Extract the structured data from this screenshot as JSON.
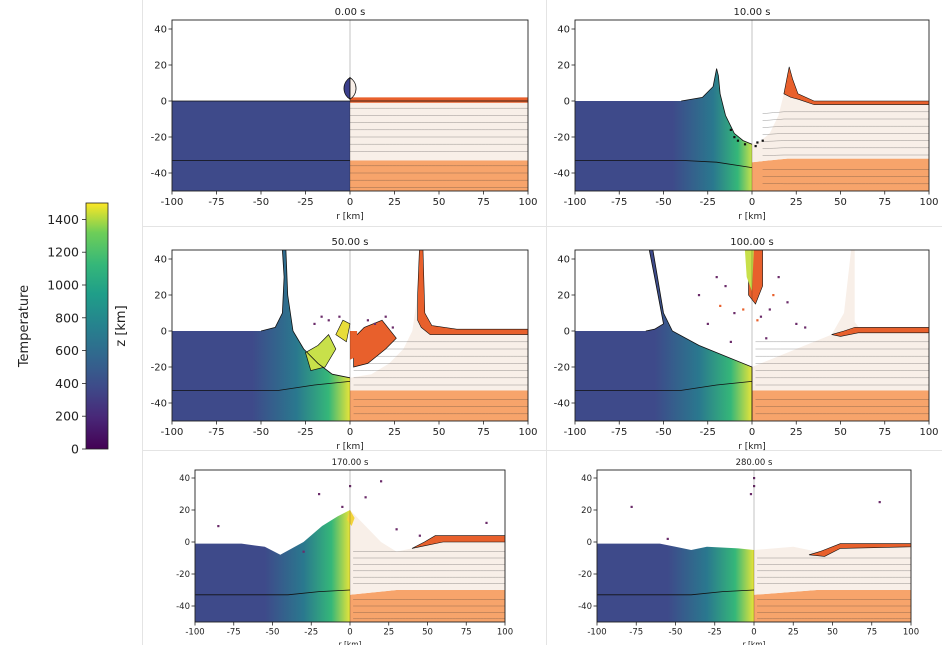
{
  "chart_data": [
    {
      "type": "heatmap",
      "title": "0.00 s",
      "xlabel": "r [km]",
      "xlim": [
        -100,
        100
      ],
      "ylim": [
        -50,
        45
      ],
      "xticks": [
        -100,
        -75,
        -50,
        -25,
        0,
        25,
        50,
        75,
        100
      ],
      "yticks": [
        40,
        20,
        0,
        -20,
        -40
      ]
    },
    {
      "type": "heatmap",
      "title": "10.00 s",
      "xlabel": "r [km]",
      "xlim": [
        -100,
        100
      ],
      "ylim": [
        -50,
        45
      ],
      "xticks": [
        -100,
        -75,
        -50,
        -25,
        0,
        25,
        50,
        75,
        100
      ],
      "yticks": [
        40,
        20,
        0,
        -20,
        -40
      ]
    },
    {
      "type": "heatmap",
      "title": "50.00 s",
      "xlabel": "r [km]",
      "xlim": [
        -100,
        100
      ],
      "ylim": [
        -50,
        45
      ],
      "xticks": [
        -100,
        -75,
        -50,
        -25,
        0,
        25,
        50,
        75,
        100
      ],
      "yticks": [
        40,
        20,
        0,
        -20,
        -40
      ]
    },
    {
      "type": "heatmap",
      "title": "100.00 s",
      "xlabel": "r [km]",
      "xlim": [
        -100,
        100
      ],
      "ylim": [
        -50,
        45
      ],
      "xticks": [
        -100,
        -75,
        -50,
        -25,
        0,
        25,
        50,
        75,
        100
      ],
      "yticks": [
        40,
        20,
        0,
        -20,
        -40
      ]
    },
    {
      "type": "heatmap",
      "title": "170.00 s",
      "xlabel": "r [km]",
      "xlim": [
        -100,
        100
      ],
      "ylim": [
        -50,
        45
      ],
      "xticks": [
        -100,
        -75,
        -50,
        -25,
        0,
        25,
        50,
        75,
        100
      ],
      "yticks": [
        40,
        20,
        0,
        -20,
        -40
      ]
    },
    {
      "type": "heatmap",
      "title": "280.00 s",
      "xlabel": "r [km]",
      "xlim": [
        -100,
        100
      ],
      "ylim": [
        -50,
        45
      ],
      "xticks": [
        -100,
        -75,
        -50,
        -25,
        0,
        25,
        50,
        75,
        100
      ],
      "yticks": [
        40,
        20,
        0,
        -20,
        -40
      ]
    }
  ],
  "colorbar": {
    "label": "Temperature",
    "ticks": [
      1400,
      1200,
      1000,
      800,
      600,
      400,
      200,
      0
    ],
    "range": [
      0,
      1500
    ],
    "colormap": "viridis",
    "shared_ylabel": "z [km]"
  },
  "colors": {
    "projectile_left": "#3b3f8c",
    "target_left": "#3e4a8a",
    "crust_right": "#f8efe8",
    "mantle_right": "#f7a46b",
    "surface_layer": "#e8602c",
    "hot_melt": "#c8e04a"
  }
}
